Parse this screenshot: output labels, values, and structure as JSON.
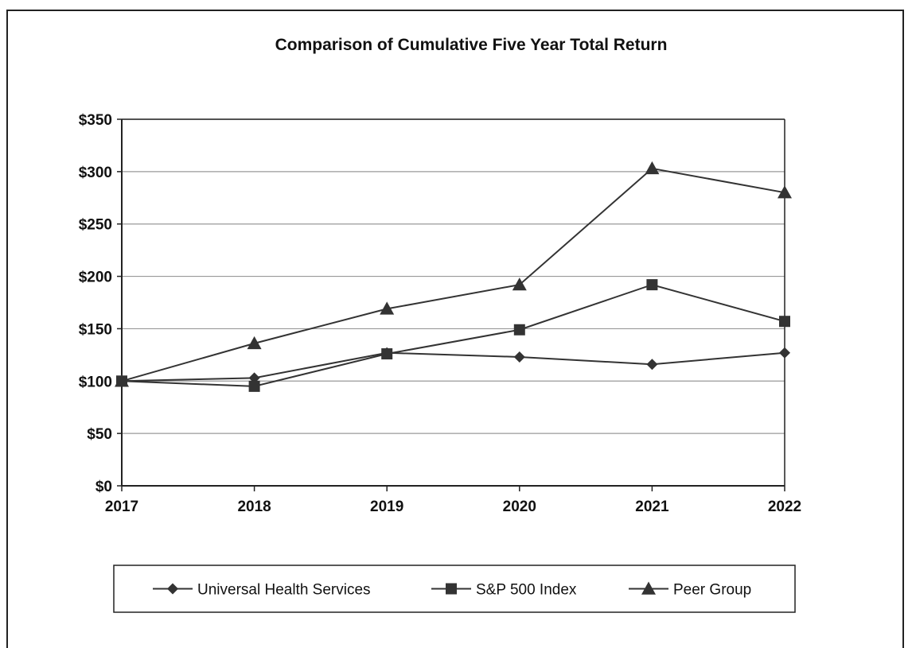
{
  "chart_data": {
    "type": "line",
    "title": "Comparison of Cumulative Five Year Total Return",
    "categories": [
      "2017",
      "2018",
      "2019",
      "2020",
      "2021",
      "2022"
    ],
    "ylim": [
      0,
      350
    ],
    "yticks": [
      0,
      50,
      100,
      150,
      200,
      250,
      300,
      350
    ],
    "ytick_labels": [
      "$0",
      "$50",
      "$100",
      "$150",
      "$200",
      "$250",
      "$300",
      "$350"
    ],
    "grid": "horizontal",
    "legend_position": "bottom",
    "series": [
      {
        "name": "Universal Health Services",
        "marker": "diamond",
        "values": [
          100,
          103,
          127,
          123,
          116,
          127
        ]
      },
      {
        "name": "S&P 500 Index",
        "marker": "square",
        "values": [
          100,
          95,
          126,
          149,
          192,
          157
        ]
      },
      {
        "name": "Peer Group",
        "marker": "triangle",
        "values": [
          100,
          136,
          169,
          192,
          303,
          280
        ]
      }
    ],
    "colors": {
      "line": "#333333",
      "grid": "#999999",
      "axis": "#222222"
    }
  }
}
